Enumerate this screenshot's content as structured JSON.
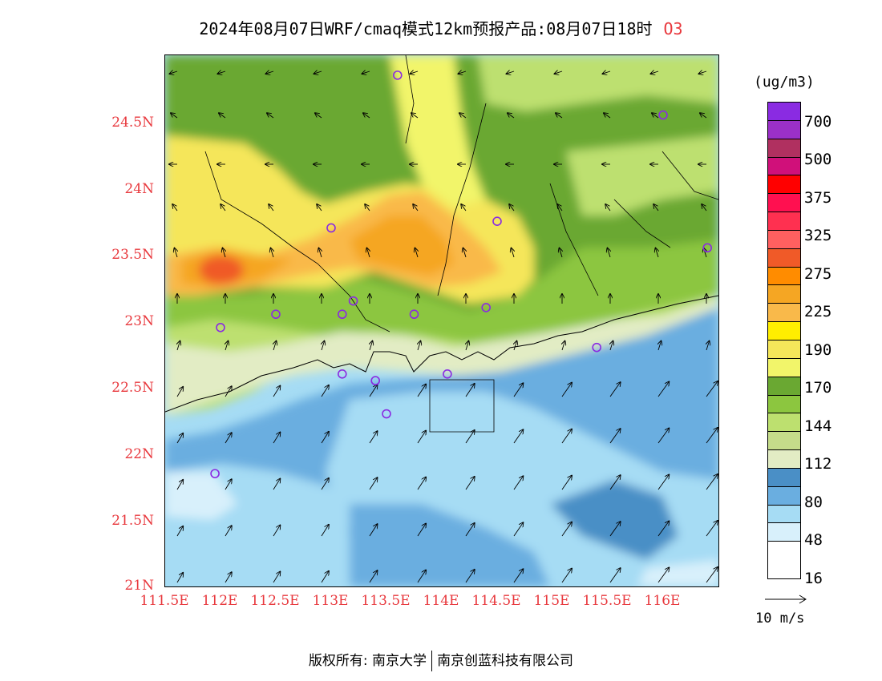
{
  "title": {
    "text": "2024年08月07日WRF/cmaq模式12km预报产品:08月07日18时",
    "species": "O3"
  },
  "map": {
    "lat_ticks": [
      "24.5N",
      "24N",
      "23.5N",
      "23N",
      "22.5N",
      "22N",
      "21.5N",
      "21N"
    ],
    "lon_ticks": [
      "111.5E",
      "112E",
      "112.5E",
      "113E",
      "113.5E",
      "114E",
      "114.5E",
      "115E",
      "115.5E",
      "116E"
    ],
    "lat_range": [
      21.0,
      25.0
    ],
    "lon_range": [
      111.5,
      116.5
    ],
    "stations": [
      {
        "lon": 113.6,
        "lat": 24.85
      },
      {
        "lon": 116.0,
        "lat": 24.55
      },
      {
        "lon": 113.0,
        "lat": 23.7
      },
      {
        "lon": 114.5,
        "lat": 23.75
      },
      {
        "lon": 116.4,
        "lat": 23.55
      },
      {
        "lon": 112.5,
        "lat": 23.05
      },
      {
        "lon": 113.1,
        "lat": 23.05
      },
      {
        "lon": 113.2,
        "lat": 23.15
      },
      {
        "lon": 113.75,
        "lat": 23.05
      },
      {
        "lon": 114.4,
        "lat": 23.1
      },
      {
        "lon": 112.0,
        "lat": 22.95
      },
      {
        "lon": 115.4,
        "lat": 22.8
      },
      {
        "lon": 113.1,
        "lat": 22.6
      },
      {
        "lon": 113.4,
        "lat": 22.55
      },
      {
        "lon": 114.05,
        "lat": 22.6
      },
      {
        "lon": 113.5,
        "lat": 22.3
      },
      {
        "lon": 111.95,
        "lat": 21.85
      }
    ]
  },
  "colorbar": {
    "unit": "(ug/m3)",
    "colors": [
      "#8a2be2",
      "#9b30c8",
      "#b03060",
      "#d0107a",
      "#ff0000",
      "#ff1050",
      "#ff3050",
      "#ff6060",
      "#f05a28",
      "#ff8c00",
      "#f5a623",
      "#f9b94a",
      "#ffee00",
      "#f5e65a",
      "#f2f56a",
      "#6aa832",
      "#8cc63f",
      "#bde06f",
      "#c5dc8a",
      "#e2ecc4",
      "#4a8fc6",
      "#6aaee0",
      "#a6dcf4",
      "#d8f0fb",
      "#ffffff"
    ],
    "labels": [
      "700",
      "500",
      "375",
      "325",
      "275",
      "225",
      "190",
      "170",
      "144",
      "112",
      "80",
      "48",
      "16"
    ]
  },
  "wind": {
    "reference_label": "10 m/s"
  },
  "footer": {
    "left": "版权所有: 南京大学",
    "right": "南京创蓝科技有限公司"
  }
}
